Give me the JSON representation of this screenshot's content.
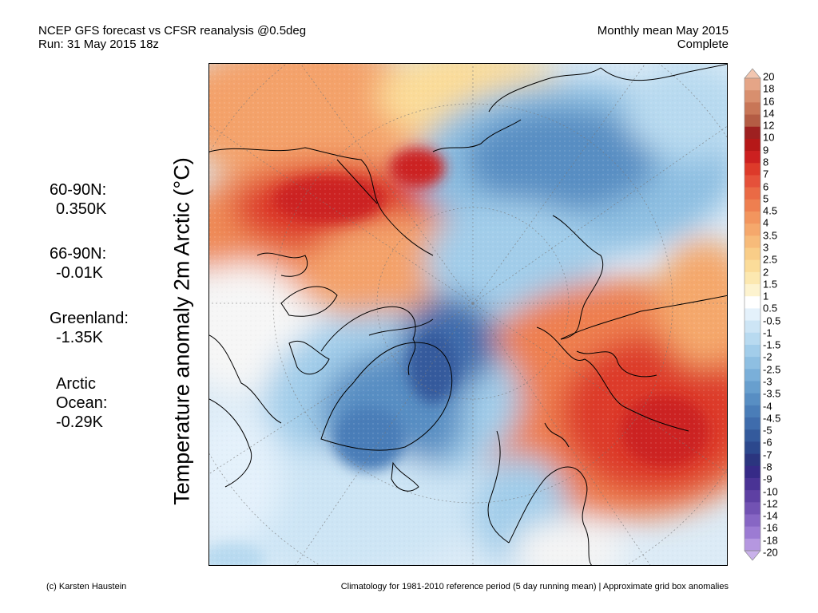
{
  "header": {
    "line1": "NCEP GFS forecast vs CFSR reanalysis @0.5deg",
    "line2": "Run: 31 May 2015 18z",
    "period": "Monthly mean May 2015",
    "status": "Complete"
  },
  "side_title": "Temperature anomaly 2m Arctic (°C)",
  "stats": [
    {
      "label": "60-90N:",
      "value": "0.350K"
    },
    {
      "label": "66-90N:",
      "value": "-0.01K"
    },
    {
      "label": "Greenland:",
      "value": "-1.35K"
    },
    {
      "label": "Arctic",
      "label2": "Ocean:",
      "value": "-0.29K"
    }
  ],
  "colorbar": {
    "labels": [
      "20",
      "18",
      "16",
      "14",
      "12",
      "10",
      "9",
      "8",
      "7",
      "6",
      "5",
      "4.5",
      "4",
      "3.5",
      "3",
      "2.5",
      "2",
      "1.5",
      "1",
      "0.5",
      "-0.5",
      "-1",
      "-1.5",
      "-2",
      "-2.5",
      "-3",
      "-3.5",
      "-4",
      "-4.5",
      "-5",
      "-6",
      "-7",
      "-8",
      "-9",
      "-10",
      "-12",
      "-14",
      "-16",
      "-18",
      "-20"
    ],
    "colors": [
      "#f2c6b0",
      "#e5a587",
      "#d88f6e",
      "#c87657",
      "#b45c44",
      "#9e2020",
      "#b51818",
      "#cc2020",
      "#dd3a2a",
      "#e5513a",
      "#ea6a45",
      "#ee7f50",
      "#f2955e",
      "#f5a86c",
      "#f7bb7a",
      "#f9cd88",
      "#fbdc99",
      "#fce8b0",
      "#fdf3cf",
      "#ffffff",
      "#e4f1fb",
      "#cde5f5",
      "#b8daf0",
      "#a2cdea",
      "#8ebfe2",
      "#7aafd9",
      "#689fce",
      "#588ec3",
      "#4a7db8",
      "#3f6cac",
      "#345a9c",
      "#2c488d",
      "#2b357f",
      "#362a87",
      "#4a3395",
      "#5e40a3",
      "#7252b3",
      "#8766c4",
      "#9c7bd3",
      "#b597e0",
      "#c9b1ea"
    ]
  },
  "footer": {
    "credit": "(c) Karsten Haustein",
    "note": "Climatology for 1981-2010 reference period (5 day running mean) | Approximate grid box anomalies"
  }
}
